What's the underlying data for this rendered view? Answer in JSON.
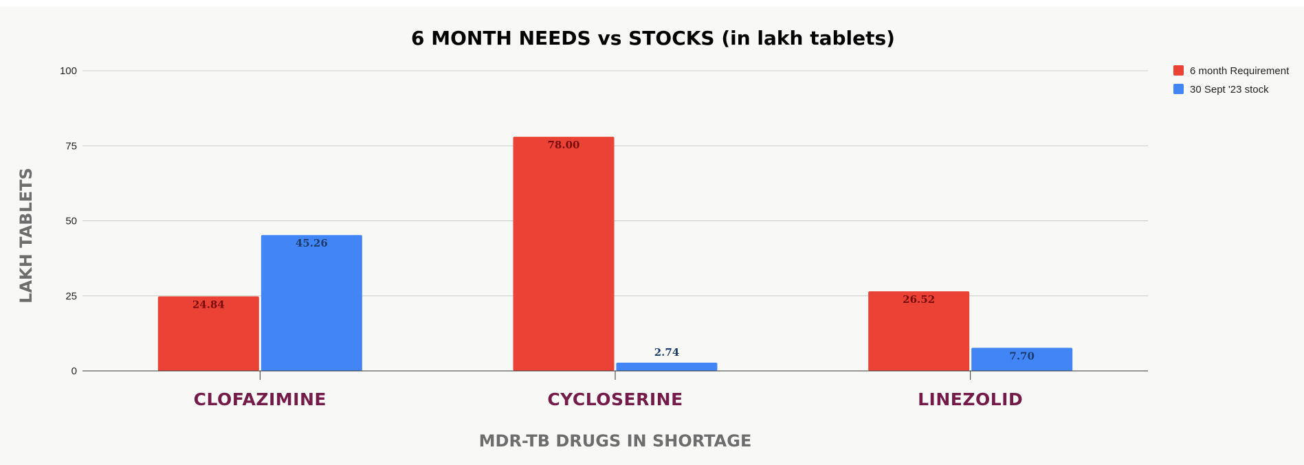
{
  "chart_data": {
    "type": "bar",
    "title": "6 MONTH NEEDS vs STOCKS (in lakh tablets)",
    "xlabel": "MDR-TB DRUGS IN SHORTAGE",
    "ylabel": "LAKH TABLETS",
    "categories": [
      "CLOFAZIMINE",
      "CYCLOSERINE",
      "LINEZOLID"
    ],
    "series": [
      {
        "name": "6 month Requirement",
        "values": [
          24.84,
          78.0,
          26.52
        ],
        "labels": [
          "24.84",
          "78.00",
          "26.52"
        ],
        "color": "#ea4335",
        "label_color": "#7a0c0c"
      },
      {
        "name": "30 Sept '23 stock",
        "values": [
          45.26,
          2.74,
          7.7
        ],
        "labels": [
          "45.26",
          "2.74",
          "7.70"
        ],
        "color": "#4285f4",
        "label_color": "#1c3b70"
      }
    ],
    "ylim": [
      0,
      100
    ],
    "yticks": [
      0,
      25,
      50,
      75,
      100
    ],
    "grid": true,
    "legend": "top-right"
  }
}
